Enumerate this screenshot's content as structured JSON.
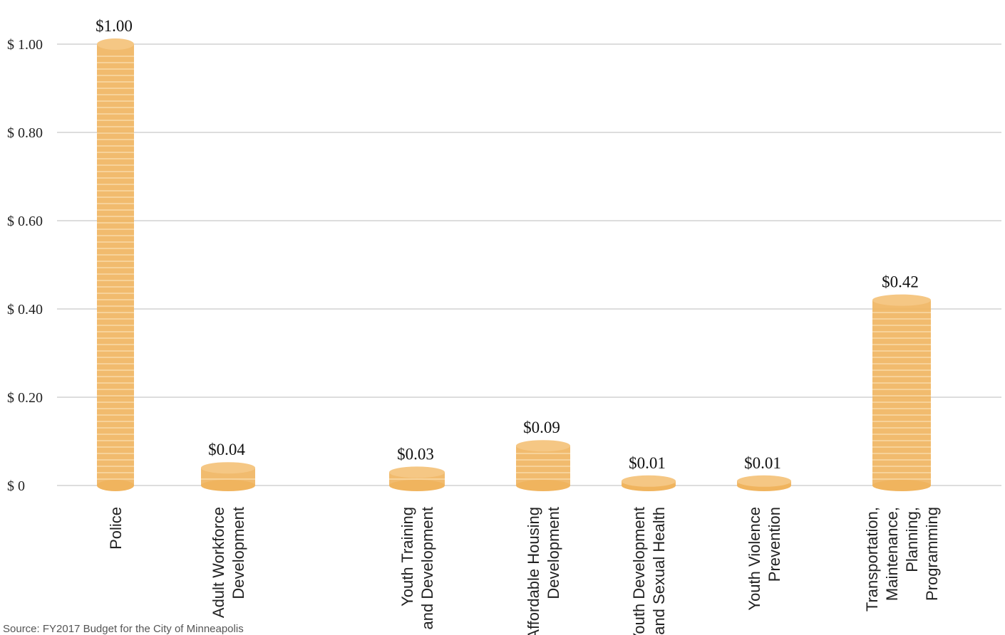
{
  "chart_data": {
    "type": "bar",
    "categories": [
      "Police",
      "Adult Workforce\nDevelopment",
      "Youth Training\nand Development",
      "Affordable Housing\nDevelopment",
      "Youth Development\nand Sexual Health",
      "Youth Violence\nPrevention",
      "Transportation,\nMaintenance,\nPlanning,\nProgramming"
    ],
    "values": [
      1.0,
      0.04,
      0.03,
      0.09,
      0.01,
      0.01,
      0.42
    ],
    "value_labels": [
      "$1.00",
      "$0.04",
      "$0.03",
      "$0.09",
      "$0.01",
      "$0.01",
      "$0.42"
    ],
    "color": "#f0b45e",
    "ylim": [
      0,
      1.0
    ],
    "yticks": [
      {
        "value": 0,
        "label": "$ 0"
      },
      {
        "value": 0.2,
        "label": "$ 0.20"
      },
      {
        "value": 0.4,
        "label": "$ 0.40"
      },
      {
        "value": 0.6,
        "label": "$ 0.60"
      },
      {
        "value": 0.8,
        "label": "$ 0.80"
      },
      {
        "value": 1.0,
        "label": "$ 1.00"
      }
    ],
    "grid": true,
    "source": "Source: FY2017 Budget for the City of Minneapolis"
  }
}
